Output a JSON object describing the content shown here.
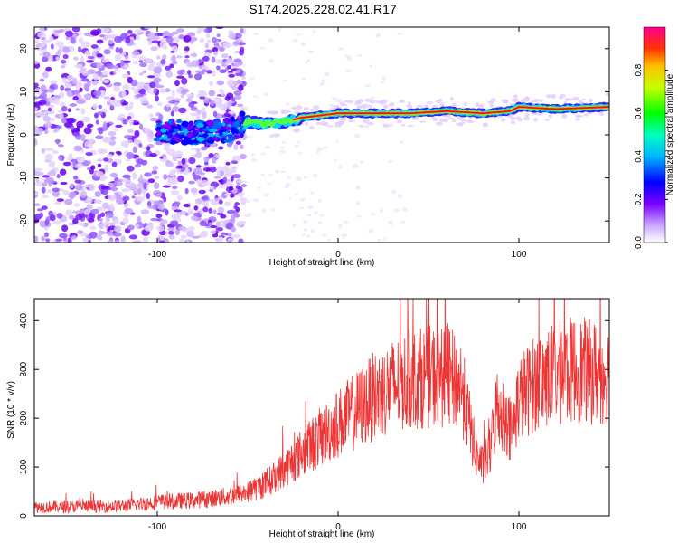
{
  "title": "S174.2025.228.02.41.R17",
  "chart_data": [
    {
      "type": "heatmap",
      "name": "spectrogram",
      "xlabel": "Height of straight line (km)",
      "ylabel": "Frequency (Hz)",
      "xlim": [
        -168,
        150
      ],
      "ylim": [
        -25,
        25
      ],
      "xticks": [
        -100,
        0,
        100
      ],
      "yticks": [
        -20,
        -10,
        0,
        10,
        20
      ],
      "colorbar": {
        "label": "Normalized spectral amplitude",
        "range": [
          0,
          1
        ],
        "ticks": [
          0.0,
          0.2,
          0.4,
          0.6,
          0.8
        ]
      },
      "ridge": {
        "description": "frequency of peak amplitude vs height",
        "x": [
          -100,
          -80,
          -60,
          -50,
          -40,
          -30,
          -20,
          -10,
          0,
          20,
          40,
          60,
          80,
          95,
          100,
          120,
          150
        ],
        "y": [
          1,
          0.5,
          1,
          3,
          2.5,
          3,
          4,
          4.5,
          5,
          5,
          5,
          5.5,
          5,
          5.5,
          6.5,
          6,
          6.5
        ]
      }
    },
    {
      "type": "line",
      "name": "snr",
      "color": "#ee3333",
      "xlabel": "Height of straight line (km)",
      "ylabel": "SNR (10 * v/v)",
      "xlim": [
        -168,
        150
      ],
      "ylim": [
        0,
        445
      ],
      "xticks": [
        -100,
        0,
        100
      ],
      "yticks": [
        0,
        100,
        200,
        300,
        400
      ],
      "envelope": {
        "x": [
          -168,
          -120,
          -100,
          -80,
          -60,
          -50,
          -40,
          -30,
          -20,
          -10,
          0,
          10,
          20,
          30,
          40,
          50,
          60,
          68,
          72,
          76,
          80,
          84,
          88,
          92,
          96,
          100,
          110,
          120,
          130,
          140,
          150
        ],
        "y": [
          18,
          20,
          28,
          32,
          40,
          48,
          65,
          95,
          130,
          160,
          190,
          215,
          245,
          265,
          280,
          285,
          285,
          270,
          200,
          130,
          100,
          130,
          230,
          200,
          175,
          240,
          275,
          290,
          300,
          295,
          290
        ]
      }
    }
  ]
}
